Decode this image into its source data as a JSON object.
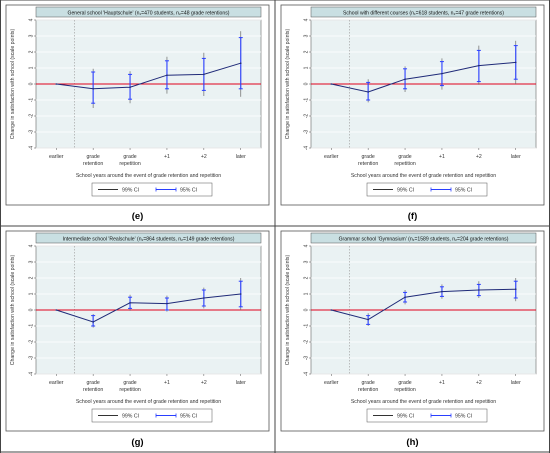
{
  "figure": {
    "x_label": "School years around the event of grade retention and repetition",
    "y_label": "Change in satisfaction with school (scale points)",
    "legend_items": [
      {
        "label": "99% CI",
        "color": "#333333"
      },
      {
        "label": "95% CI",
        "color": "#2a3fff"
      }
    ],
    "colors": {
      "line": "#1f2a78",
      "ci99": "#6a6a6a",
      "ci95": "#2a3fff",
      "zero_line": "#e0001b",
      "panel_bg": "#eaf2f3",
      "title_bg": "#c9dfe2",
      "grid": "#ffffff",
      "event_marker": "#999999"
    }
  },
  "chart_data": [
    {
      "type": "line",
      "letter": "(e)",
      "title": "General school 'Hauptschule' (n₁=470 students, n₂=48 grade retentions)",
      "categories": [
        "earlier",
        "grade retention",
        "grade repetition",
        "+1",
        "+2",
        "later"
      ],
      "ylim": [
        -4,
        4
      ],
      "yticks": [
        -4,
        -3,
        -2,
        -1,
        0,
        1,
        2,
        3,
        4
      ],
      "event_marker_after": "earlier",
      "series": [
        {
          "role": "estimate",
          "values": [
            0,
            -0.3,
            -0.2,
            0.55,
            0.6,
            1.3
          ]
        },
        {
          "role": "ci95",
          "low": [
            null,
            -1.2,
            -0.95,
            -0.3,
            -0.4,
            -0.3
          ],
          "high": [
            null,
            0.75,
            0.6,
            1.45,
            1.6,
            2.9
          ]
        },
        {
          "role": "ci99",
          "low": [
            null,
            -1.5,
            -1.2,
            -0.6,
            -0.75,
            -0.8
          ],
          "high": [
            null,
            0.95,
            0.8,
            1.7,
            1.95,
            3.3
          ]
        }
      ]
    },
    {
      "type": "line",
      "letter": "(f)",
      "title": "School with different courses (n₁=618 students, n₂=47 grade retentions)",
      "categories": [
        "earlier",
        "grade retention",
        "grade repetition",
        "+1",
        "+2",
        "later"
      ],
      "ylim": [
        -4,
        4
      ],
      "yticks": [
        -4,
        -3,
        -2,
        -1,
        0,
        1,
        2,
        3,
        4
      ],
      "event_marker_after": "earlier",
      "series": [
        {
          "role": "estimate",
          "values": [
            0,
            -0.5,
            0.3,
            0.65,
            1.15,
            1.35
          ]
        },
        {
          "role": "ci95",
          "low": [
            null,
            -1.0,
            -0.3,
            -0.1,
            0.15,
            0.3
          ],
          "high": [
            null,
            0.1,
            0.95,
            1.4,
            2.1,
            2.4
          ]
        },
        {
          "role": "ci99",
          "low": [
            null,
            -1.15,
            -0.5,
            -0.35,
            -0.05,
            0.0
          ],
          "high": [
            null,
            0.3,
            1.1,
            1.6,
            2.4,
            2.7
          ]
        }
      ]
    },
    {
      "type": "line",
      "letter": "(g)",
      "title": "Intermediate school 'Realschule' (n₁=864 students, n₂=149 grade retentions)",
      "categories": [
        "earlier",
        "grade retention",
        "grade repetition",
        "+1",
        "+2",
        "later"
      ],
      "ylim": [
        -4,
        4
      ],
      "yticks": [
        -4,
        -3,
        -2,
        -1,
        0,
        1,
        2,
        3,
        4
      ],
      "event_marker_after": "earlier",
      "series": [
        {
          "role": "estimate",
          "values": [
            0,
            -0.75,
            0.45,
            0.4,
            0.75,
            1.0
          ]
        },
        {
          "role": "ci95",
          "low": [
            null,
            -1.0,
            0.1,
            0.0,
            0.25,
            0.2
          ],
          "high": [
            null,
            -0.35,
            0.8,
            0.75,
            1.25,
            1.8
          ]
        },
        {
          "role": "ci99",
          "low": [
            null,
            -1.1,
            -0.05,
            -0.1,
            0.1,
            0.0
          ],
          "high": [
            null,
            -0.25,
            0.95,
            0.9,
            1.4,
            2.0
          ]
        }
      ]
    },
    {
      "type": "line",
      "letter": "(h)",
      "title": "Grammar school 'Gymnasium' (n₁=1589 students, n₂=204 grade retentions)",
      "categories": [
        "earlier",
        "grade retention",
        "grade repetition",
        "+1",
        "+2",
        "later"
      ],
      "ylim": [
        -4,
        4
      ],
      "yticks": [
        -4,
        -3,
        -2,
        -1,
        0,
        1,
        2,
        3,
        4
      ],
      "event_marker_after": "earlier",
      "series": [
        {
          "role": "estimate",
          "values": [
            0,
            -0.6,
            0.8,
            1.15,
            1.25,
            1.3
          ]
        },
        {
          "role": "ci95",
          "low": [
            null,
            -0.9,
            0.5,
            0.85,
            0.9,
            0.75
          ],
          "high": [
            null,
            -0.35,
            1.1,
            1.45,
            1.6,
            1.8
          ]
        },
        {
          "role": "ci99",
          "low": [
            null,
            -1.0,
            0.35,
            0.7,
            0.75,
            0.55
          ],
          "high": [
            null,
            -0.2,
            1.25,
            1.6,
            1.8,
            2.0
          ]
        }
      ]
    }
  ]
}
